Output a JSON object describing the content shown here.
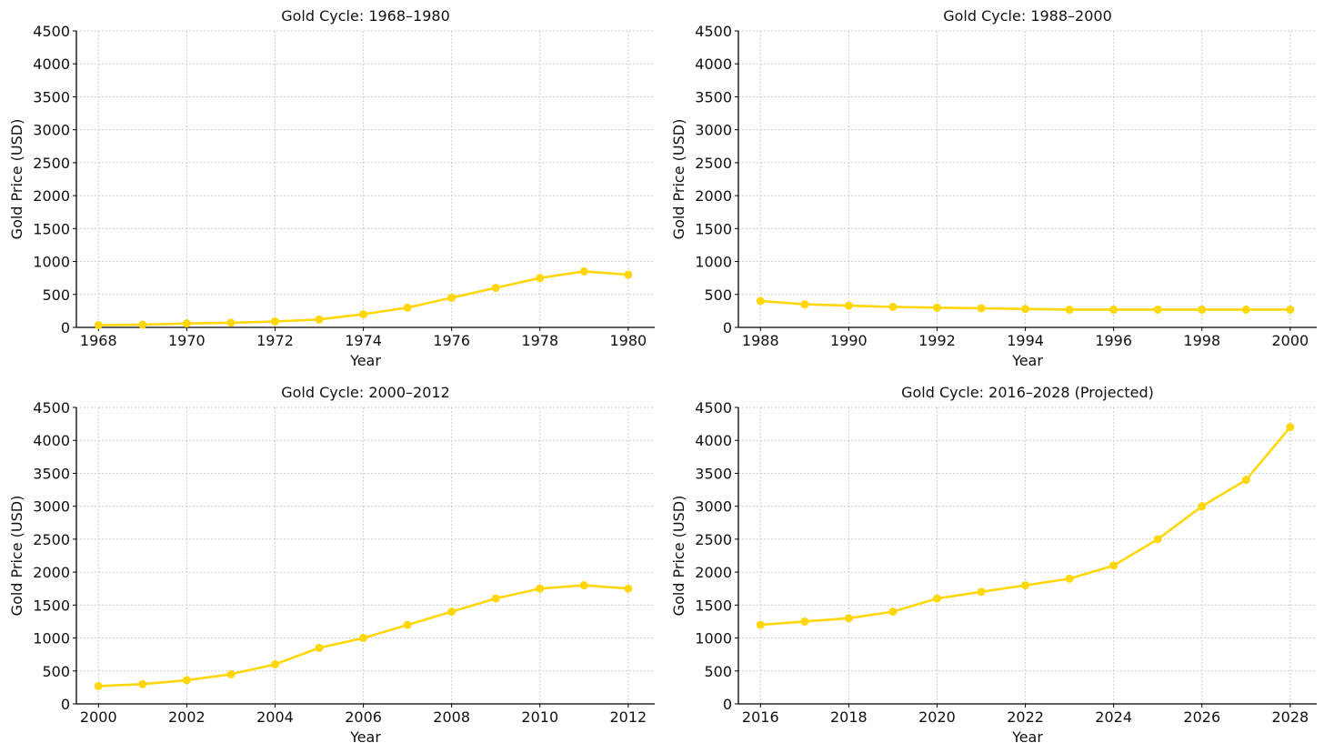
{
  "chart_data": [
    {
      "type": "line",
      "title": "Gold Cycle: 1968–1980",
      "xlabel": "Year",
      "ylabel": "Gold Price (USD)",
      "xlim": [
        1967.5,
        1980.6
      ],
      "ylim": [
        0,
        4500
      ],
      "xticks": [
        1968,
        1970,
        1972,
        1974,
        1976,
        1978,
        1980
      ],
      "yticks": [
        0,
        500,
        1000,
        1500,
        2000,
        2500,
        3000,
        3500,
        4000,
        4500
      ],
      "grid": true,
      "color": "#FFD60A",
      "x": [
        1968,
        1969,
        1970,
        1971,
        1972,
        1973,
        1974,
        1975,
        1976,
        1977,
        1978,
        1979,
        1980
      ],
      "values": [
        35,
        41,
        60,
        70,
        90,
        120,
        200,
        300,
        450,
        600,
        750,
        850,
        800
      ]
    },
    {
      "type": "line",
      "title": "Gold Cycle: 1988–2000",
      "xlabel": "Year",
      "ylabel": "Gold Price (USD)",
      "xlim": [
        1987.5,
        2000.6
      ],
      "ylim": [
        0,
        4500
      ],
      "xticks": [
        1988,
        1990,
        1992,
        1994,
        1996,
        1998,
        2000
      ],
      "yticks": [
        0,
        500,
        1000,
        1500,
        2000,
        2500,
        3000,
        3500,
        4000,
        4500
      ],
      "grid": true,
      "color": "#FFD60A",
      "x": [
        1988,
        1989,
        1990,
        1991,
        1992,
        1993,
        1994,
        1995,
        1996,
        1997,
        1998,
        1999,
        2000
      ],
      "values": [
        400,
        350,
        330,
        310,
        300,
        290,
        280,
        270,
        270,
        270,
        270,
        270,
        270
      ]
    },
    {
      "type": "line",
      "title": "Gold Cycle: 2000–2012",
      "xlabel": "Year",
      "ylabel": "Gold Price (USD)",
      "xlim": [
        1999.5,
        2012.6
      ],
      "ylim": [
        0,
        4500
      ],
      "xticks": [
        2000,
        2002,
        2004,
        2006,
        2008,
        2010,
        2012
      ],
      "yticks": [
        0,
        500,
        1000,
        1500,
        2000,
        2500,
        3000,
        3500,
        4000,
        4500
      ],
      "grid": true,
      "color": "#FFD60A",
      "x": [
        2000,
        2001,
        2002,
        2003,
        2004,
        2005,
        2006,
        2007,
        2008,
        2009,
        2010,
        2011,
        2012
      ],
      "values": [
        270,
        300,
        360,
        450,
        600,
        850,
        1000,
        1200,
        1400,
        1600,
        1750,
        1800,
        1750
      ]
    },
    {
      "type": "line",
      "title": "Gold Cycle: 2016–2028 (Projected)",
      "xlabel": "Year",
      "ylabel": "Gold Price (USD)",
      "xlim": [
        2015.5,
        2028.6
      ],
      "ylim": [
        0,
        4500
      ],
      "xticks": [
        2016,
        2018,
        2020,
        2022,
        2024,
        2026,
        2028
      ],
      "yticks": [
        0,
        500,
        1000,
        1500,
        2000,
        2500,
        3000,
        3500,
        4000,
        4500
      ],
      "grid": true,
      "color": "#FFD60A",
      "x": [
        2016,
        2017,
        2018,
        2019,
        2020,
        2021,
        2022,
        2023,
        2024,
        2025,
        2026,
        2027,
        2028
      ],
      "values": [
        1200,
        1250,
        1300,
        1400,
        1600,
        1700,
        1800,
        1900,
        2100,
        2500,
        3000,
        3400,
        4200
      ]
    }
  ]
}
